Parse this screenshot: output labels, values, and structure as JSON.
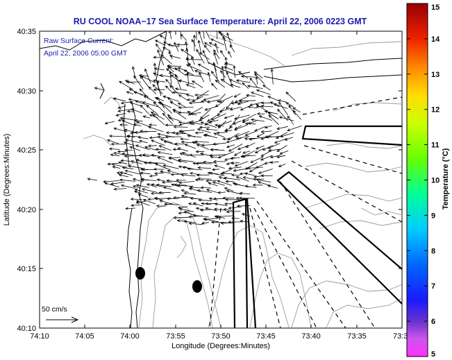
{
  "title": "RU COOL  NOAA−17  Sea Surface Temperature:  April 22, 2006 0223 GMT",
  "annotation": {
    "line1": "Raw Surface Current:",
    "line2": "April 22, 2006 05:00 GMT"
  },
  "x_axis": {
    "label": "Longitude (Degrees:Minutes)",
    "ticks": [
      "74:10",
      "74:05",
      "74:00",
      "73:55",
      "73:50",
      "73:45",
      "73:40",
      "73:35",
      "73:3"
    ]
  },
  "y_axis": {
    "label": "Latitude (Degrees:Minutes)",
    "ticks": [
      "40:35",
      "40:30",
      "40:25",
      "40:20",
      "40:15",
      "40:10"
    ]
  },
  "colorbar": {
    "label": "Temperature (°C)",
    "ticks": [
      "15",
      "14",
      "13",
      "12",
      "11",
      "10",
      "9",
      "8",
      "7",
      "6",
      "5"
    ],
    "range": [
      5,
      15
    ]
  },
  "scale_arrow_label": "50 cm/s",
  "colors": {
    "title_text": "#1a1ab0",
    "land_contour": "#000000",
    "bathymetry": "#9a9a9a",
    "vectors": "#000000"
  },
  "chart_data": {
    "type": "map",
    "title": "RU COOL  NOAA−17  Sea Surface Temperature:  April 22, 2006 0223 GMT",
    "xlabel": "Longitude (Degrees:Minutes)",
    "ylabel": "Latitude (Degrees:Minutes)",
    "xlim_minutes_west": [
      74.1667,
      73.5
    ],
    "ylim_minutes_north": [
      40.1667,
      40.5833
    ],
    "colorbar_range_c": [
      5,
      15
    ],
    "vector_field_description": "surface current vectors concentrated in the Lower New York Harbor / Raritan Bay region",
    "sites": [
      {
        "lon": "73:59",
        "lat": "40:14.5"
      },
      {
        "lon": "73:52.5",
        "lat": "40:13"
      }
    ]
  }
}
